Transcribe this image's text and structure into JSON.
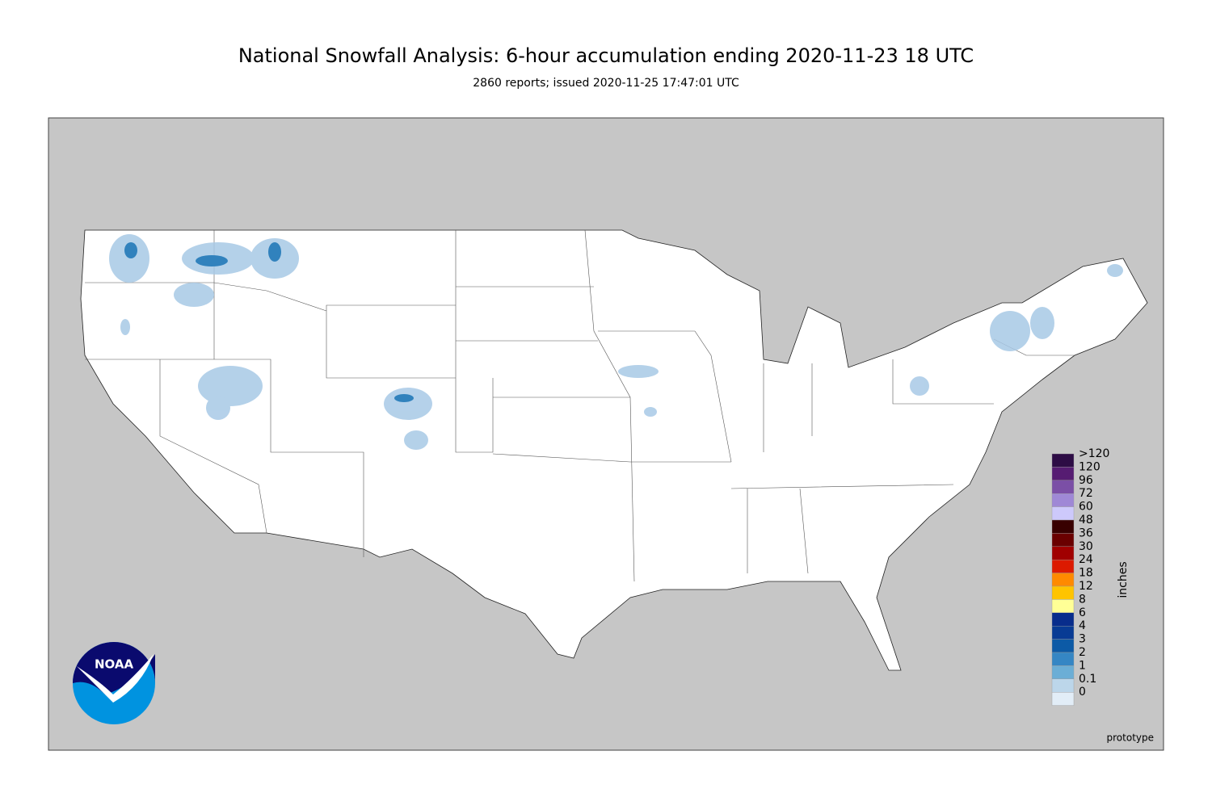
{
  "header": {
    "title": "National Snowfall Analysis: 6-hour accumulation ending 2020-11-23 18 UTC",
    "subtitle": "2860 reports; issued 2020-11-25 17:47:01 UTC"
  },
  "legend": {
    "unit": "inches",
    "items": [
      {
        "label": ">120",
        "color": "#2d0c45"
      },
      {
        "label": "120",
        "color": "#561c72"
      },
      {
        "label": "96",
        "color": "#7b4fa6"
      },
      {
        "label": "72",
        "color": "#9f88d6"
      },
      {
        "label": "60",
        "color": "#cdc9fb"
      },
      {
        "label": "48",
        "color": "#380000"
      },
      {
        "label": "36",
        "color": "#6a0000"
      },
      {
        "label": "30",
        "color": "#a00000"
      },
      {
        "label": "24",
        "color": "#dc1a00"
      },
      {
        "label": "18",
        "color": "#ff8a00"
      },
      {
        "label": "12",
        "color": "#ffc400"
      },
      {
        "label": "8",
        "color": "#ffff96"
      },
      {
        "label": "6",
        "color": "#082d8c"
      },
      {
        "label": "4",
        "color": "#083b94"
      },
      {
        "label": "3",
        "color": "#0c5aa6"
      },
      {
        "label": "2",
        "color": "#3586c4"
      },
      {
        "label": "1",
        "color": "#6baed6"
      },
      {
        "label": "0.1",
        "color": "#bcd6ea"
      },
      {
        "label": "0",
        "color": "#e2edf7"
      }
    ]
  },
  "logo": {
    "text": "NOAA"
  },
  "footer": {
    "note": "prototype"
  }
}
